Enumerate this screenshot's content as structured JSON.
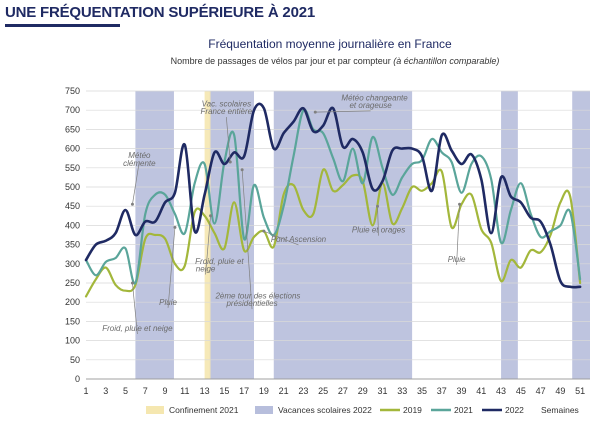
{
  "page_title": "UNE FRÉQUENTATION SUPÉRIEURE À 2021",
  "chart_data": {
    "type": "line",
    "title": "Fréquentation moyenne journalière en France",
    "subtitle": "Nombre de passages de vélos par jour et par compteur",
    "subtitle_note": "(à échantillon comparable)",
    "xlabel": "Semaines",
    "ylabel": "",
    "xlim": [
      1,
      52
    ],
    "ylim": [
      0,
      750
    ],
    "x_ticks": [
      "1",
      "3",
      "5",
      "7",
      "9",
      "11",
      "13",
      "15",
      "17",
      "19",
      "21",
      "23",
      "25",
      "27",
      "29",
      "31",
      "33",
      "35",
      "37",
      "39",
      "41",
      "43",
      "45",
      "47",
      "49",
      "51"
    ],
    "y_ticks": [
      0,
      50,
      100,
      150,
      200,
      250,
      300,
      350,
      400,
      450,
      500,
      550,
      600,
      650,
      700,
      750
    ],
    "grid": true,
    "legend_position": "bottom",
    "bands": [
      {
        "legend": "Vacances scolaires 2022",
        "color": "#b7bedc",
        "ranges": [
          [
            6,
            9.9
          ],
          [
            13.5,
            18
          ],
          [
            20,
            34
          ],
          [
            43,
            44.7
          ],
          [
            50.2,
            52
          ]
        ]
      },
      {
        "legend": "Confinement 2021",
        "color": "#f5e7b0",
        "ranges": [
          [
            13,
            13.6
          ]
        ]
      }
    ],
    "series": [
      {
        "name": "2019",
        "color": "#a3b73b",
        "values": [
          215,
          260,
          290,
          245,
          230,
          245,
          365,
          375,
          365,
          300,
          295,
          435,
          425,
          380,
          340,
          460,
          335,
          370,
          385,
          345,
          480,
          505,
          440,
          430,
          545,
          490,
          505,
          530,
          515,
          400,
          510,
          405,
          445,
          500,
          490,
          510,
          540,
          395,
          455,
          480,
          390,
          355,
          255,
          310,
          290,
          335,
          330,
          375,
          460,
          475,
          250
        ]
      },
      {
        "name": "2021",
        "color": "#5aa59a",
        "values": [
          310,
          270,
          305,
          315,
          340,
          250,
          430,
          480,
          480,
          430,
          380,
          510,
          560,
          405,
          565,
          635,
          365,
          505,
          420,
          375,
          450,
          580,
          700,
          650,
          640,
          575,
          515,
          600,
          510,
          630,
          550,
          480,
          525,
          560,
          570,
          625,
          590,
          565,
          485,
          560,
          580,
          520,
          355,
          440,
          510,
          430,
          370,
          385,
          400,
          435,
          260
        ]
      },
      {
        "name": "2022",
        "color": "#1f2a63",
        "values": [
          310,
          350,
          360,
          380,
          440,
          375,
          410,
          410,
          460,
          485,
          610,
          385,
          480,
          590,
          560,
          590,
          580,
          700,
          705,
          600,
          640,
          670,
          705,
          645,
          660,
          705,
          605,
          625,
          590,
          495,
          515,
          595,
          600,
          600,
          580,
          490,
          635,
          595,
          560,
          585,
          520,
          380,
          525,
          475,
          460,
          420,
          410,
          350,
          255,
          240,
          240
        ]
      }
    ],
    "annotations": [
      {
        "text": "Météo",
        "x": 6.4,
        "y": 575,
        "target": [
          5.7,
          455
        ]
      },
      {
        "text": "clémente",
        "x": 6.4,
        "y": 555
      },
      {
        "text": "Vac. scolaires",
        "x": 15.2,
        "y": 710
      },
      {
        "text": "France entière",
        "x": 15.2,
        "y": 690,
        "target": [
          15.6,
          565
        ]
      },
      {
        "text": "Météo changeante",
        "x": 30.2,
        "y": 725
      },
      {
        "text": "et orageuse",
        "x": 29.8,
        "y": 706,
        "target": [
          24.2,
          695
        ]
      },
      {
        "text": "Froid, pluie et",
        "x": 14.5,
        "y": 300
      },
      {
        "text": "neige",
        "x": 13.1,
        "y": 280,
        "target": [
          13.6,
          425
        ]
      },
      {
        "text": "Pluie",
        "x": 9.3,
        "y": 193,
        "target": [
          10,
          395
        ]
      },
      {
        "text": "Froid, pluie et neige",
        "x": 6.2,
        "y": 125,
        "target": [
          5.7,
          250
        ]
      },
      {
        "text": "2ème tour des élections",
        "x": 18.4,
        "y": 210
      },
      {
        "text": "présidentielles",
        "x": 17.8,
        "y": 190,
        "target": [
          16.8,
          545
        ]
      },
      {
        "text": "Pont Ascension",
        "x": 22.5,
        "y": 357,
        "target": [
          19,
          385
        ]
      },
      {
        "text": "Pluie et orages",
        "x": 30.6,
        "y": 381,
        "target": [
          30.5,
          450
        ]
      },
      {
        "text": "Pluie",
        "x": 38.5,
        "y": 305,
        "target": [
          38.8,
          455
        ]
      }
    ]
  }
}
